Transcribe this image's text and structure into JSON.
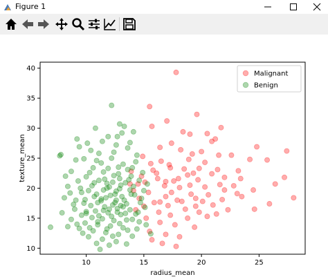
{
  "window": {
    "title": "Figure 1"
  },
  "toolbar": {
    "buttons": [
      "home-icon",
      "back-icon",
      "forward-icon",
      "pan-icon",
      "zoom-icon",
      "configure-subplots-icon",
      "edit-axis-icon",
      "save-icon"
    ]
  },
  "colors": {
    "malignant": "#ff0000",
    "benign": "#008000"
  },
  "chart_data": {
    "type": "scatter",
    "xlabel": "radius_mean",
    "ylabel": "texture_mean",
    "xlim": [
      6,
      29
    ],
    "ylim": [
      9,
      41
    ],
    "xticks": [
      10,
      15,
      20,
      25
    ],
    "yticks": [
      10,
      15,
      20,
      25,
      30,
      35,
      40
    ],
    "grid": false,
    "legend_position": "top-right",
    "series": [
      {
        "name": "Malignant",
        "color": "#ff0000",
        "points": [
          [
            17.8,
            39.3
          ],
          [
            15.5,
            33.6
          ],
          [
            19.6,
            32.3
          ],
          [
            20.5,
            29.1
          ],
          [
            19.0,
            29.0
          ],
          [
            21.2,
            28.2
          ],
          [
            17.4,
            27.5
          ],
          [
            24.8,
            26.9
          ],
          [
            27.4,
            26.2
          ],
          [
            25.7,
            24.7
          ],
          [
            20.0,
            26.1
          ],
          [
            21.5,
            25.5
          ],
          [
            18.9,
            24.8
          ],
          [
            16.5,
            24.5
          ],
          [
            17.3,
            23.4
          ],
          [
            18.5,
            23.2
          ],
          [
            15.8,
            23.0
          ],
          [
            19.3,
            22.5
          ],
          [
            20.9,
            22.4
          ],
          [
            22.0,
            21.8
          ],
          [
            23.4,
            21.6
          ],
          [
            16.2,
            21.6
          ],
          [
            17.6,
            21.2
          ],
          [
            19.7,
            21.4
          ],
          [
            14.8,
            22.0
          ],
          [
            15.1,
            21.0
          ],
          [
            16.8,
            20.4
          ],
          [
            18.1,
            20.1
          ],
          [
            20.3,
            20.2
          ],
          [
            21.6,
            20.6
          ],
          [
            22.8,
            20.4
          ],
          [
            24.5,
            19.7
          ],
          [
            27.2,
            21.8
          ],
          [
            28.0,
            18.4
          ],
          [
            25.9,
            17.4
          ],
          [
            26.4,
            20.7
          ],
          [
            15.4,
            19.3
          ],
          [
            16.9,
            18.6
          ],
          [
            17.9,
            18.0
          ],
          [
            19.1,
            19.0
          ],
          [
            20.6,
            18.9
          ],
          [
            21.8,
            18.1
          ],
          [
            23.5,
            18.6
          ],
          [
            14.6,
            18.3
          ],
          [
            15.9,
            17.6
          ],
          [
            17.1,
            17.1
          ],
          [
            18.6,
            16.5
          ],
          [
            19.8,
            16.0
          ],
          [
            21.0,
            17.2
          ],
          [
            22.3,
            16.4
          ],
          [
            16.3,
            16.0
          ],
          [
            17.3,
            15.5
          ],
          [
            18.8,
            15.0
          ],
          [
            20.5,
            15.3
          ],
          [
            15.2,
            15.0
          ],
          [
            16.4,
            14.3
          ],
          [
            17.7,
            13.9
          ],
          [
            19.4,
            13.5
          ],
          [
            15.5,
            12.8
          ],
          [
            16.9,
            12.3
          ],
          [
            18.1,
            11.9
          ],
          [
            15.7,
            11.4
          ],
          [
            16.6,
            10.8
          ],
          [
            17.8,
            10.3
          ],
          [
            14.3,
            16.4
          ],
          [
            14.1,
            19.6
          ],
          [
            13.9,
            22.8
          ],
          [
            14.9,
            25.3
          ],
          [
            16.4,
            26.8
          ],
          [
            18.2,
            26.4
          ],
          [
            22.6,
            25.5
          ],
          [
            20.3,
            24.3
          ],
          [
            21.4,
            23.1
          ],
          [
            19.8,
            23.3
          ],
          [
            18.0,
            21.6
          ],
          [
            16.1,
            22.5
          ],
          [
            14.5,
            20.7
          ],
          [
            19.0,
            20.5
          ],
          [
            20.1,
            17.8
          ],
          [
            22.0,
            19.7
          ],
          [
            23.2,
            22.9
          ],
          [
            24.2,
            24.8
          ],
          [
            17.4,
            19.3
          ],
          [
            18.3,
            17.8
          ],
          [
            19.5,
            18.3
          ],
          [
            16.4,
            17.7
          ],
          [
            15.0,
            17.0
          ],
          [
            13.8,
            20.7
          ],
          [
            17.2,
            23.9
          ],
          [
            20.9,
            27.8
          ],
          [
            19.2,
            25.7
          ],
          [
            18.4,
            29.4
          ],
          [
            15.7,
            30.3
          ],
          [
            17.0,
            31.2
          ],
          [
            21.7,
            30.1
          ],
          [
            18.8,
            22.2
          ],
          [
            16.9,
            21.1
          ],
          [
            15.6,
            24.1
          ],
          [
            19.5,
            17.0
          ],
          [
            21.3,
            15.7
          ],
          [
            24.6,
            16.5
          ],
          [
            23.1,
            19.1
          ]
        ]
      },
      {
        "name": "Benign",
        "color": "#008000",
        "points": [
          [
            12.2,
            33.8
          ],
          [
            7.8,
            25.6
          ],
          [
            7.7,
            25.4
          ],
          [
            9.1,
            24.7
          ],
          [
            6.9,
            13.5
          ],
          [
            12.9,
            30.7
          ],
          [
            13.3,
            30.3
          ],
          [
            14.1,
            29.4
          ],
          [
            11.9,
            28.6
          ],
          [
            9.2,
            28.2
          ],
          [
            12.6,
            27.2
          ],
          [
            13.6,
            26.7
          ],
          [
            10.4,
            26.3
          ],
          [
            14.4,
            25.5
          ],
          [
            11.1,
            25.8
          ],
          [
            9.8,
            24.9
          ],
          [
            12.2,
            25.0
          ],
          [
            13.2,
            24.0
          ],
          [
            14.0,
            23.4
          ],
          [
            10.6,
            23.4
          ],
          [
            8.7,
            22.8
          ],
          [
            11.5,
            22.7
          ],
          [
            12.8,
            22.4
          ],
          [
            13.9,
            22.0
          ],
          [
            10.0,
            21.9
          ],
          [
            9.3,
            21.2
          ],
          [
            11.1,
            21.3
          ],
          [
            12.3,
            21.0
          ],
          [
            13.4,
            20.9
          ],
          [
            14.6,
            21.3
          ],
          [
            8.4,
            20.3
          ],
          [
            10.5,
            20.4
          ],
          [
            11.8,
            20.0
          ],
          [
            12.9,
            19.9
          ],
          [
            13.8,
            19.7
          ],
          [
            15.0,
            19.6
          ],
          [
            9.6,
            19.3
          ],
          [
            10.9,
            19.0
          ],
          [
            12.1,
            18.8
          ],
          [
            13.1,
            18.6
          ],
          [
            14.2,
            18.9
          ],
          [
            8.1,
            18.4
          ],
          [
            9.9,
            18.1
          ],
          [
            11.3,
            17.9
          ],
          [
            12.5,
            17.6
          ],
          [
            13.5,
            17.4
          ],
          [
            14.7,
            17.6
          ],
          [
            10.4,
            17.1
          ],
          [
            11.6,
            16.9
          ],
          [
            12.7,
            16.6
          ],
          [
            13.8,
            16.4
          ],
          [
            15.1,
            16.8
          ],
          [
            9.0,
            16.5
          ],
          [
            10.8,
            16.2
          ],
          [
            11.9,
            15.9
          ],
          [
            13.0,
            15.6
          ],
          [
            14.3,
            15.7
          ],
          [
            9.6,
            15.5
          ],
          [
            10.5,
            15.1
          ],
          [
            11.4,
            14.9
          ],
          [
            12.4,
            14.6
          ],
          [
            13.5,
            14.7
          ],
          [
            14.6,
            14.4
          ],
          [
            8.7,
            14.8
          ],
          [
            9.9,
            14.2
          ],
          [
            11.0,
            13.9
          ],
          [
            12.1,
            13.7
          ],
          [
            13.2,
            13.4
          ],
          [
            14.4,
            13.2
          ],
          [
            9.4,
            13.3
          ],
          [
            10.6,
            12.9
          ],
          [
            11.7,
            12.6
          ],
          [
            12.8,
            12.3
          ],
          [
            14.0,
            12.0
          ],
          [
            10.2,
            11.9
          ],
          [
            11.4,
            11.5
          ],
          [
            12.6,
            11.1
          ],
          [
            13.5,
            10.7
          ],
          [
            11.2,
            9.8
          ],
          [
            15.2,
            13.9
          ],
          [
            15.6,
            12.4
          ],
          [
            12.0,
            20.2
          ],
          [
            12.6,
            19.5
          ],
          [
            11.7,
            18.4
          ],
          [
            12.3,
            17.2
          ],
          [
            13.3,
            18.0
          ],
          [
            12.9,
            21.6
          ],
          [
            11.5,
            19.7
          ],
          [
            12.0,
            16.5
          ],
          [
            13.0,
            17.1
          ],
          [
            11.0,
            17.6
          ],
          [
            11.8,
            20.8
          ],
          [
            12.4,
            22.1
          ],
          [
            13.6,
            23.1
          ],
          [
            10.3,
            22.6
          ],
          [
            9.5,
            20.0
          ],
          [
            8.9,
            17.3
          ],
          [
            10.0,
            16.1
          ],
          [
            11.1,
            15.4
          ],
          [
            12.2,
            15.3
          ],
          [
            13.4,
            15.8
          ],
          [
            14.5,
            16.0
          ],
          [
            14.8,
            18.3
          ],
          [
            14.1,
            20.3
          ],
          [
            13.7,
            21.4
          ],
          [
            11.3,
            24.2
          ],
          [
            10.1,
            27.5
          ],
          [
            12.7,
            28.6
          ],
          [
            11.4,
            27.8
          ],
          [
            13.8,
            27.6
          ],
          [
            8.6,
            19.2
          ],
          [
            9.8,
            17.5
          ],
          [
            10.7,
            18.6
          ],
          [
            12.5,
            19.0
          ],
          [
            13.0,
            20.5
          ],
          [
            11.6,
            21.5
          ],
          [
            12.8,
            23.5
          ],
          [
            14.3,
            24.4
          ],
          [
            10.9,
            24.6
          ],
          [
            8.2,
            22.0
          ],
          [
            7.9,
            15.9
          ],
          [
            9.2,
            14.0
          ],
          [
            10.3,
            13.4
          ],
          [
            11.8,
            13.2
          ],
          [
            13.6,
            13.0
          ],
          [
            12.9,
            14.1
          ],
          [
            11.5,
            16.3
          ],
          [
            12.6,
            18.0
          ],
          [
            13.9,
            19.0
          ],
          [
            10.7,
            20.9
          ],
          [
            11.9,
            23.3
          ],
          [
            12.4,
            26.0
          ],
          [
            13.1,
            29.2
          ],
          [
            10.8,
            30.0
          ],
          [
            9.4,
            26.9
          ],
          [
            14.9,
            22.6
          ],
          [
            15.3,
            20.7
          ],
          [
            14.0,
            14.8
          ],
          [
            12.3,
            12.0
          ],
          [
            10.9,
            10.8
          ],
          [
            12.0,
            10.5
          ],
          [
            9.7,
            12.5
          ],
          [
            8.4,
            13.6
          ],
          [
            9.1,
            18.0
          ],
          [
            10.2,
            19.6
          ],
          [
            11.3,
            18.2
          ],
          [
            12.7,
            16.0
          ],
          [
            13.2,
            16.9
          ],
          [
            11.0,
            14.4
          ],
          [
            10.0,
            15.8
          ]
        ]
      }
    ]
  }
}
